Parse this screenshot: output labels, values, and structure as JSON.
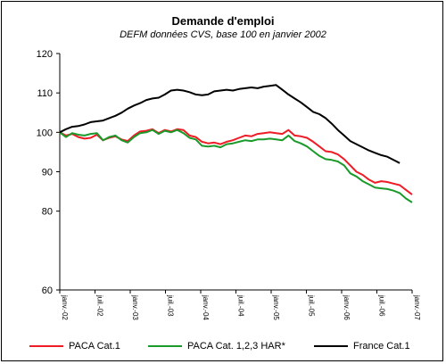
{
  "chart_data": {
    "type": "line",
    "title": "Demande d'emploi",
    "subtitle": "DEFM données CVS, base 100 en janvier 2002",
    "xlabel": "",
    "ylabel": "",
    "ylim": [
      60,
      120
    ],
    "yticks": [
      "120",
      "110",
      "100",
      "90",
      "80"
    ],
    "y_tick_values": [
      120,
      110,
      100,
      90,
      80
    ],
    "x_tick_labels": [
      "janv.-02",
      "juil.-02",
      "janv.-03",
      "juil.-03",
      "janv.-04",
      "juil.-04",
      "janv.-05",
      "juil.-05",
      "janv.-06",
      "juil.-06",
      "janv.-07"
    ],
    "grid": false,
    "legend_position": "bottom",
    "series": [
      {
        "name": "PACA Cat.1",
        "color": "#ee1c25",
        "values": [
          100.0,
          99.2,
          99.6,
          98.8,
          98.4,
          98.6,
          99.4,
          98.0,
          98.6,
          99.0,
          98.2,
          97.8,
          99.2,
          100.2,
          100.4,
          100.8,
          99.8,
          100.6,
          100.2,
          100.8,
          100.6,
          99.2,
          98.8,
          97.6,
          97.2,
          97.4,
          97.0,
          97.6,
          98.0,
          98.6,
          99.2,
          99.0,
          99.6,
          99.8,
          100.0,
          99.8,
          99.6,
          100.6,
          99.2,
          99.0,
          98.6,
          97.6,
          96.4,
          95.2,
          95.0,
          94.4,
          93.2,
          91.6,
          90.0,
          89.2,
          88.0,
          87.2,
          87.6,
          87.4,
          87.0,
          86.6,
          85.4,
          84.2
        ]
      },
      {
        "name": "PACA Cat. 1,2,3 HAR*",
        "color": "#1a9a2a",
        "values": [
          100.0,
          98.8,
          99.8,
          99.4,
          99.2,
          99.6,
          99.8,
          98.0,
          98.8,
          99.2,
          98.0,
          97.4,
          98.8,
          99.8,
          100.0,
          100.6,
          99.6,
          100.4,
          100.0,
          100.6,
          99.8,
          98.6,
          98.2,
          96.6,
          96.4,
          96.6,
          96.2,
          97.0,
          97.2,
          97.6,
          98.0,
          97.8,
          98.2,
          98.2,
          98.4,
          98.2,
          98.0,
          99.2,
          97.8,
          97.2,
          96.4,
          95.2,
          94.0,
          93.2,
          93.0,
          92.6,
          91.6,
          89.6,
          88.8,
          87.6,
          86.8,
          86.0,
          85.8,
          85.6,
          85.2,
          84.6,
          83.2,
          82.2
        ]
      },
      {
        "name": "France Cat.1",
        "color": "#000000",
        "values": [
          100.0,
          100.8,
          101.4,
          101.6,
          102.0,
          102.6,
          102.8,
          103.0,
          103.6,
          104.2,
          105.0,
          106.0,
          106.8,
          107.4,
          108.2,
          108.6,
          108.8,
          109.6,
          110.6,
          110.8,
          110.6,
          110.2,
          109.6,
          109.4,
          109.6,
          110.4,
          110.6,
          110.8,
          110.6,
          111.0,
          111.2,
          111.4,
          111.2,
          111.6,
          111.8,
          112.0,
          110.8,
          109.6,
          108.6,
          107.6,
          106.4,
          105.2,
          104.6,
          103.6,
          102.2,
          100.6,
          99.2,
          97.8,
          97.0,
          96.2,
          95.4,
          94.8,
          94.2,
          93.8,
          93.0,
          92.2
        ]
      }
    ]
  }
}
